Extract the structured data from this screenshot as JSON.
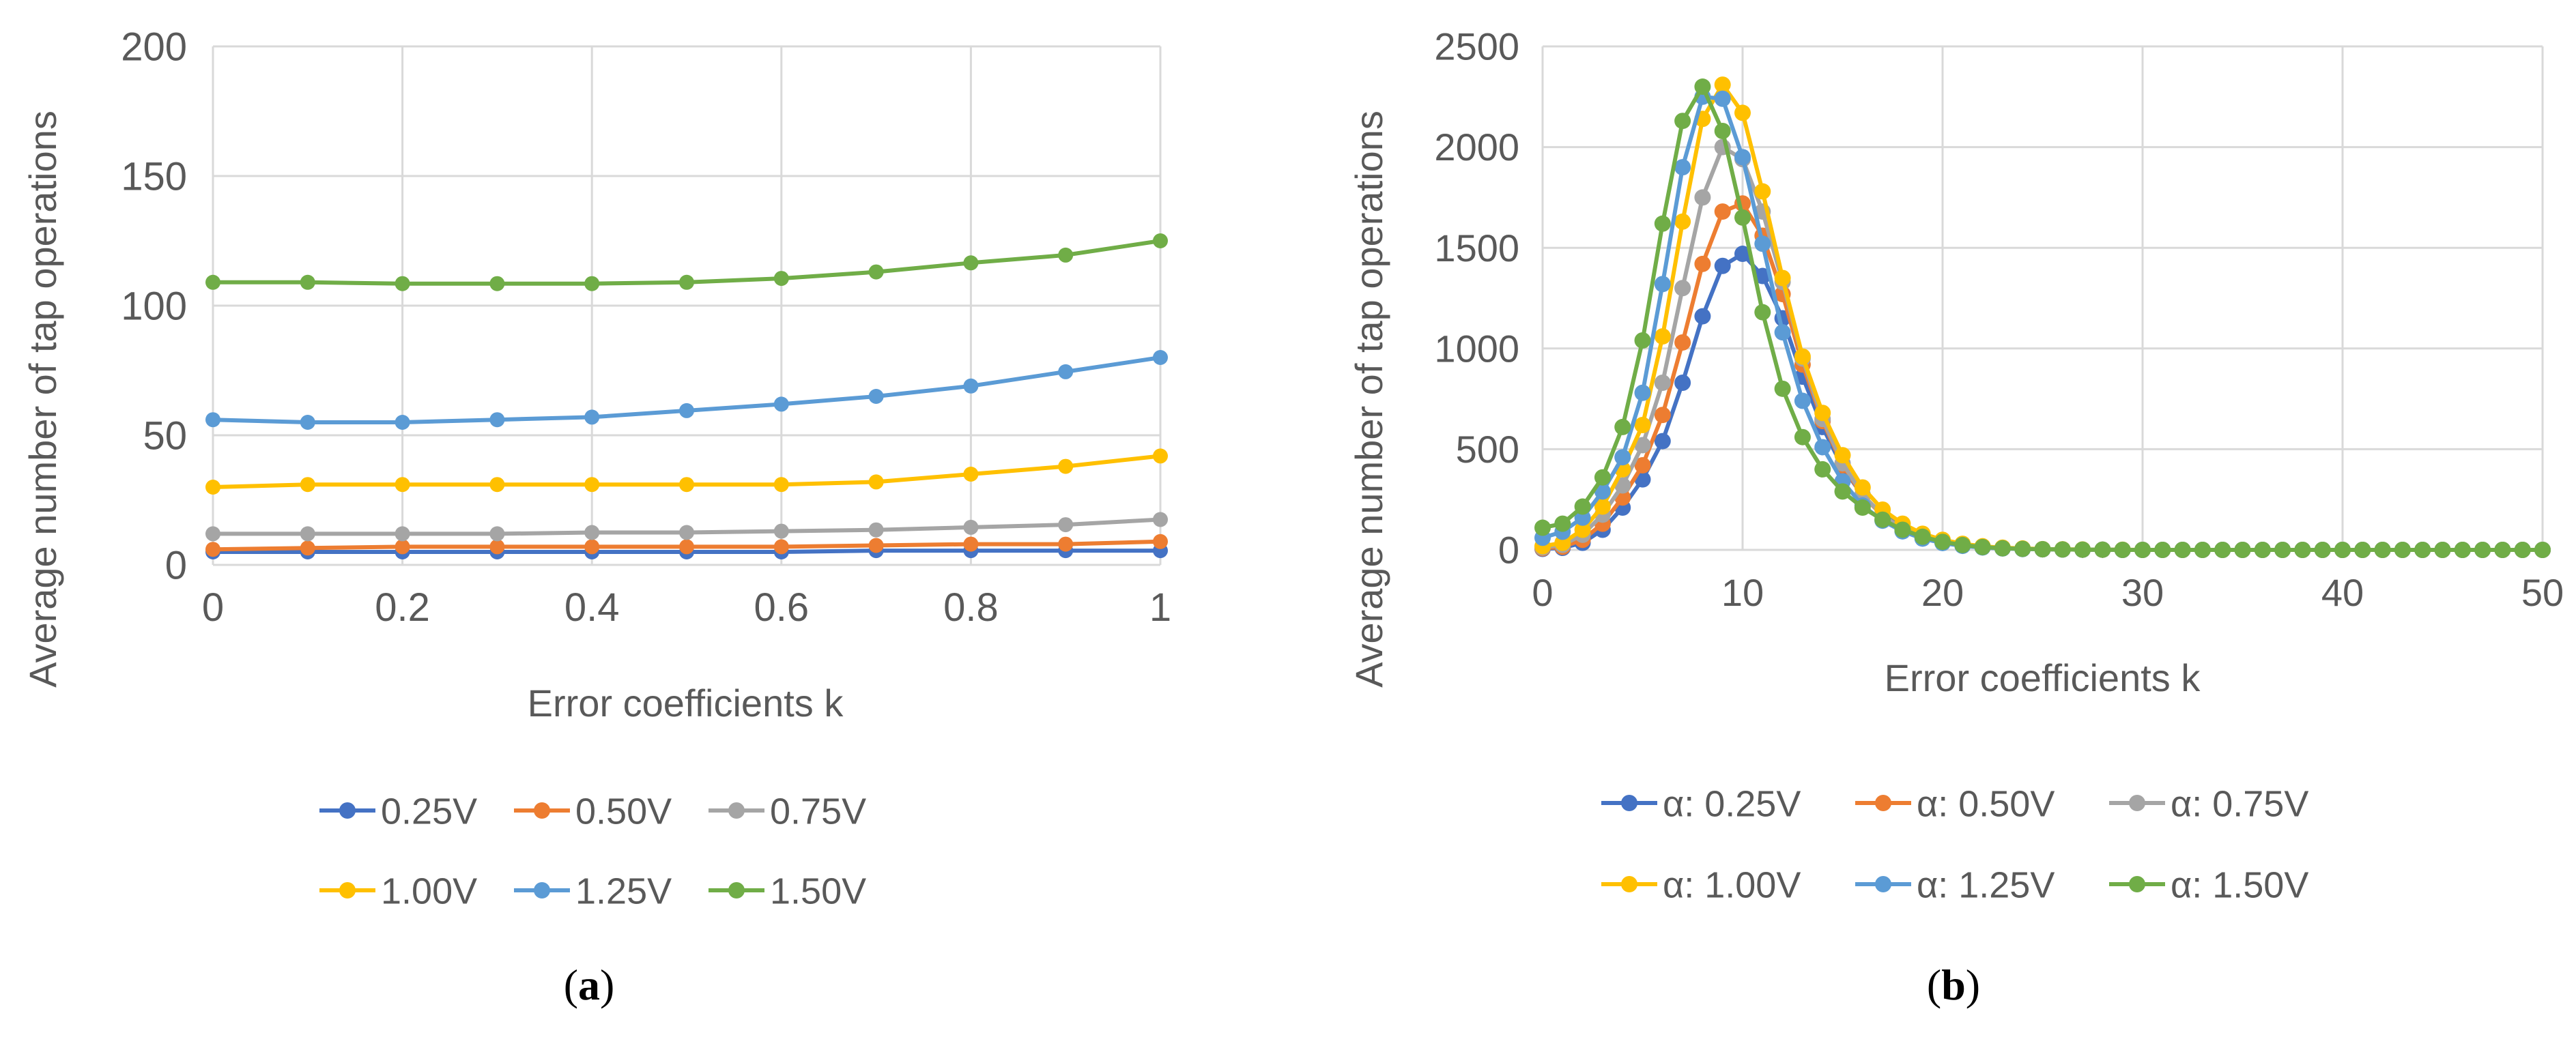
{
  "chart_data": [
    {
      "type": "line",
      "panel_label": "(a)",
      "panel_letter": "a",
      "xlabel": "Error coefficients k",
      "ylabel": "Average number of tap operations",
      "xlim": [
        0,
        1
      ],
      "ylim": [
        0,
        200
      ],
      "xticks": [
        "0",
        "0.2",
        "0.4",
        "0.6",
        "0.8",
        "1"
      ],
      "xtick_values": [
        0,
        0.2,
        0.4,
        0.6,
        0.8,
        1
      ],
      "yticks": [
        "0",
        "50",
        "100",
        "150",
        "200"
      ],
      "ytick_values": [
        0,
        50,
        100,
        150,
        200
      ],
      "grid": true,
      "legend_position": "bottom",
      "x": [
        0,
        0.1,
        0.2,
        0.3,
        0.4,
        0.5,
        0.6,
        0.7,
        0.8,
        0.9,
        1.0
      ],
      "series": [
        {
          "name": "0.25V",
          "color": "#4472C4",
          "values": [
            5,
            5,
            5,
            5,
            5,
            5,
            5,
            5.5,
            5.5,
            5.5,
            5.5
          ]
        },
        {
          "name": "0.50V",
          "color": "#ED7D31",
          "values": [
            6,
            6.5,
            7,
            7,
            7,
            7,
            7,
            7.5,
            8,
            8,
            9
          ]
        },
        {
          "name": "0.75V",
          "color": "#A5A5A5",
          "values": [
            12,
            12,
            12,
            12,
            12.5,
            12.5,
            13,
            13.5,
            14.5,
            15.5,
            17.5
          ]
        },
        {
          "name": "1.00V",
          "color": "#FFC000",
          "values": [
            30,
            31,
            31,
            31,
            31,
            31,
            31,
            32,
            35,
            38,
            42
          ]
        },
        {
          "name": "1.25V",
          "color": "#5B9BD5",
          "values": [
            56,
            55,
            55,
            56,
            57,
            59.5,
            62,
            65,
            69,
            74.5,
            80
          ]
        },
        {
          "name": "1.50V",
          "color": "#70AD47",
          "values": [
            109,
            109,
            108.5,
            108.5,
            108.5,
            109,
            110.5,
            113,
            116.5,
            119.5,
            125
          ]
        }
      ]
    },
    {
      "type": "line",
      "panel_label": "(b)",
      "panel_letter": "b",
      "xlabel": "Error coefficients k",
      "ylabel": "Average number of tap operations",
      "xlim": [
        0,
        50
      ],
      "ylim": [
        0,
        2500
      ],
      "xticks": [
        "0",
        "10",
        "20",
        "30",
        "40",
        "50"
      ],
      "xtick_values": [
        0,
        10,
        20,
        30,
        40,
        50
      ],
      "yticks": [
        "0",
        "500",
        "1000",
        "1500",
        "2000",
        "2500"
      ],
      "ytick_values": [
        0,
        500,
        1000,
        1500,
        2000,
        2500
      ],
      "grid": true,
      "legend_position": "bottom",
      "x": [
        0,
        1,
        2,
        3,
        4,
        5,
        6,
        7,
        8,
        9,
        10,
        11,
        12,
        13,
        14,
        15,
        16,
        17,
        18,
        19,
        20,
        21,
        22,
        23,
        24,
        25,
        26,
        27,
        28,
        29,
        30,
        31,
        32,
        33,
        34,
        35,
        36,
        37,
        38,
        39,
        40,
        41,
        42,
        43,
        44,
        45,
        46,
        47,
        48,
        49,
        50
      ],
      "series": [
        {
          "name": "α: 0.25V",
          "color": "#4472C4",
          "values": [
            5,
            10,
            35,
            100,
            210,
            350,
            540,
            830,
            1160,
            1410,
            1470,
            1360,
            1150,
            860,
            610,
            410,
            270,
            175,
            110,
            68,
            42,
            25,
            15,
            9,
            5,
            3,
            2,
            1,
            1,
            0,
            0,
            0,
            0,
            0,
            0,
            0,
            0,
            0,
            0,
            0,
            0,
            0,
            0,
            0,
            0,
            0,
            0,
            0,
            0,
            0,
            0
          ]
        },
        {
          "name": "α: 0.50V",
          "color": "#ED7D31",
          "values": [
            8,
            15,
            50,
            130,
            260,
            420,
            670,
            1030,
            1420,
            1680,
            1720,
            1560,
            1270,
            920,
            640,
            420,
            270,
            170,
            105,
            62,
            38,
            22,
            13,
            8,
            5,
            3,
            2,
            1,
            1,
            0,
            0,
            0,
            0,
            0,
            0,
            0,
            0,
            0,
            0,
            0,
            0,
            0,
            0,
            0,
            0,
            0,
            0,
            0,
            0,
            0,
            0
          ]
        },
        {
          "name": "α: 0.75V",
          "color": "#A5A5A5",
          "values": [
            12,
            25,
            75,
            175,
            320,
            520,
            830,
            1300,
            1750,
            2000,
            1940,
            1680,
            1330,
            950,
            650,
            430,
            275,
            170,
            105,
            63,
            38,
            22,
            13,
            8,
            5,
            3,
            2,
            1,
            1,
            0,
            0,
            0,
            0,
            0,
            0,
            0,
            0,
            0,
            0,
            0,
            0,
            0,
            0,
            0,
            0,
            0,
            0,
            0,
            0,
            0,
            0
          ]
        },
        {
          "name": "α: 1.00V",
          "color": "#FFC000",
          "values": [
            18,
            35,
            100,
            215,
            400,
            620,
            1060,
            1630,
            2140,
            2310,
            2170,
            1780,
            1350,
            960,
            680,
            470,
            310,
            200,
            130,
            80,
            50,
            30,
            18,
            11,
            7,
            4,
            3,
            2,
            1,
            1,
            0,
            0,
            0,
            0,
            0,
            0,
            0,
            0,
            0,
            0,
            0,
            0,
            0,
            0,
            0,
            0,
            0,
            0,
            0,
            0,
            0
          ]
        },
        {
          "name": "α: 1.25V",
          "color": "#5B9BD5",
          "values": [
            60,
            90,
            160,
            290,
            460,
            780,
            1320,
            1900,
            2250,
            2240,
            1950,
            1520,
            1080,
            740,
            510,
            340,
            220,
            145,
            92,
            56,
            34,
            20,
            12,
            7,
            4,
            3,
            2,
            1,
            1,
            0,
            0,
            0,
            0,
            0,
            0,
            0,
            0,
            0,
            0,
            0,
            0,
            0,
            0,
            0,
            0,
            0,
            0,
            0,
            0,
            0,
            0
          ]
        },
        {
          "name": "α: 1.50V",
          "color": "#70AD47",
          "values": [
            110,
            130,
            215,
            360,
            610,
            1040,
            1620,
            2130,
            2300,
            2080,
            1650,
            1180,
            800,
            560,
            400,
            290,
            210,
            150,
            100,
            65,
            40,
            24,
            14,
            8,
            5,
            3,
            2,
            1,
            1,
            0,
            0,
            0,
            0,
            0,
            0,
            0,
            0,
            0,
            0,
            0,
            0,
            0,
            0,
            0,
            0,
            0,
            0,
            0,
            0,
            0,
            0
          ]
        }
      ]
    }
  ]
}
